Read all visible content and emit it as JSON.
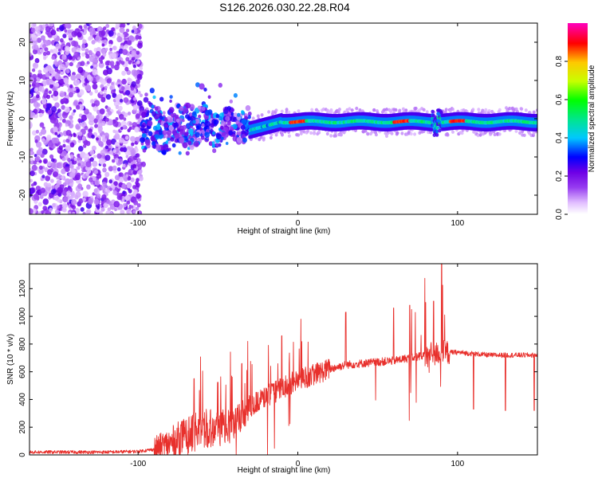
{
  "title": "S126.2026.030.22.28.R04",
  "chart_data": [
    {
      "type": "heatmap",
      "xlabel": "Height of straight line (km)",
      "ylabel": "Frequency (Hz)",
      "xlim": [
        -168,
        150
      ],
      "ylim": [
        -25,
        25
      ],
      "x_ticks": [
        -100,
        0,
        100
      ],
      "y_ticks": [
        -20,
        -10,
        0,
        10,
        20
      ],
      "colorbar": {
        "label": "Normalized spectral amplitude",
        "range": [
          0,
          1
        ],
        "ticks": [
          "0.0",
          "0.2",
          "0.4",
          "0.6",
          "0.8"
        ],
        "colormap": "rainbow (white - violet - blue - cyan - green - yellow - red - magenta)"
      },
      "features": {
        "noise_region_x": [
          -168,
          -98
        ],
        "scatter_region_x": [
          -98,
          -30
        ],
        "stable_line_x": [
          -30,
          150
        ],
        "stable_line_frequency_hz": 0,
        "high_amplitude_segments_x": [
          [
            -5,
            5
          ],
          [
            60,
            70
          ],
          [
            95,
            105
          ]
        ]
      }
    },
    {
      "type": "line",
      "xlabel": "Height of straight line (km)",
      "ylabel": "SNR (10 * v/v)",
      "xlim": [
        -168,
        150
      ],
      "ylim": [
        0,
        1380
      ],
      "x_ticks": [
        -100,
        0,
        100
      ],
      "y_ticks": [
        0,
        200,
        400,
        600,
        800,
        1000,
        1200
      ],
      "color": "#e8302c",
      "envelope": {
        "x": [
          -168,
          -120,
          -100,
          -90,
          -80,
          -70,
          -60,
          -50,
          -40,
          -30,
          -20,
          -10,
          0,
          10,
          20,
          30,
          40,
          50,
          60,
          70,
          80,
          90,
          100,
          110,
          120,
          130,
          150
        ],
        "y": [
          20,
          20,
          25,
          40,
          80,
          140,
          200,
          200,
          210,
          350,
          420,
          480,
          540,
          580,
          620,
          650,
          660,
          670,
          680,
          700,
          720,
          740,
          740,
          730,
          720,
          720,
          720
        ]
      },
      "peaks_x": [
        -65,
        -35,
        -10,
        30,
        60,
        70,
        80,
        85,
        90,
        110,
        130,
        148
      ]
    }
  ]
}
